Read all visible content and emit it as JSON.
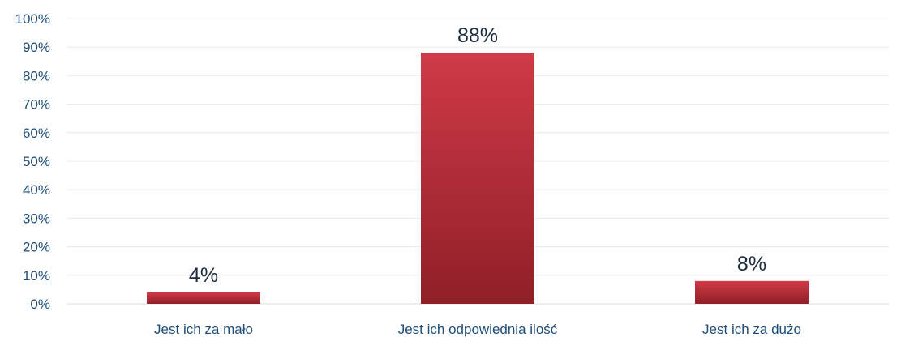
{
  "chart_data": {
    "type": "bar",
    "categories": [
      "Jest ich za mało",
      "Jest ich odpowiednia ilość",
      "Jest ich za dużo"
    ],
    "values": [
      4,
      88,
      8
    ],
    "data_labels": [
      "4%",
      "88%",
      "8%"
    ],
    "y_ticks": [
      "0%",
      "10%",
      "20%",
      "30%",
      "40%",
      "50%",
      "60%",
      "70%",
      "80%",
      "90%",
      "100%"
    ],
    "ylim": [
      0,
      100
    ],
    "grid": true,
    "legend": "none",
    "colors": {
      "bar_top": "#cf3a47",
      "bar_bottom": "#8f1f27",
      "tick_text": "#1f4e79",
      "label_text": "#1c2b3e"
    }
  }
}
